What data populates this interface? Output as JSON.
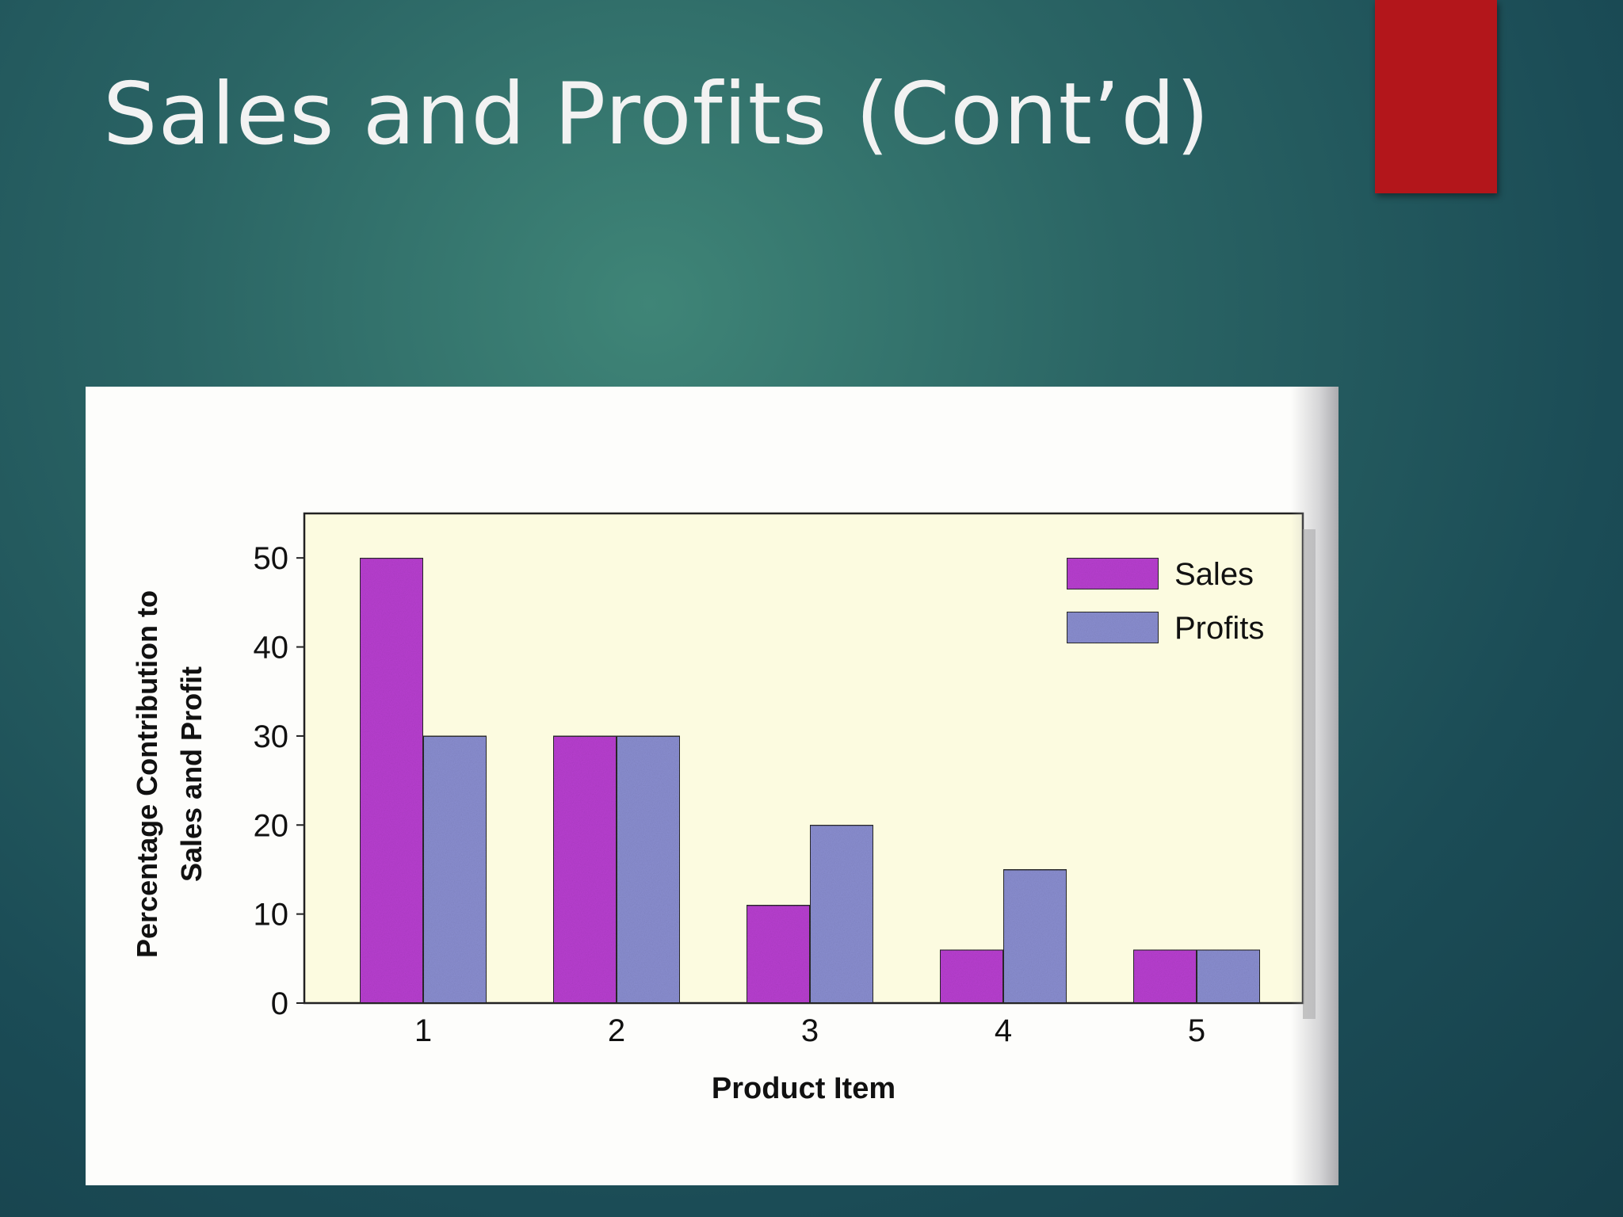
{
  "slide": {
    "title": "Sales and Profits (Cont’d)",
    "accent_color": "#b3161b"
  },
  "chart_data": {
    "type": "bar",
    "categories": [
      "1",
      "2",
      "3",
      "4",
      "5"
    ],
    "series": [
      {
        "name": "Sales",
        "values": [
          50,
          30,
          11,
          6,
          6
        ],
        "color": "#b83fd0"
      },
      {
        "name": "Profits",
        "values": [
          30,
          30,
          20,
          15,
          6
        ],
        "color": "#8a8ed0"
      }
    ],
    "xlabel": "Product Item",
    "ylabel_line1": "Percentage Contribution to",
    "ylabel_line2": "Sales and Profit",
    "ylim": [
      0,
      55
    ],
    "yticks": [
      0,
      10,
      20,
      30,
      40,
      50
    ],
    "grid": false,
    "legend_position": "top-right",
    "plot_background": "#fcfbe0"
  }
}
